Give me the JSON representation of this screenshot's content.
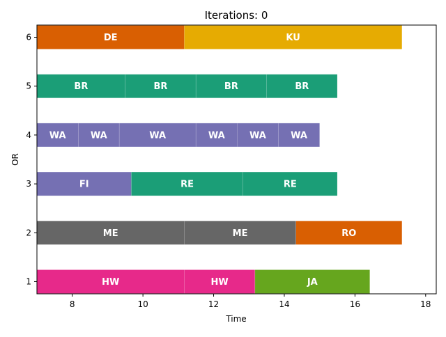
{
  "chart_data": {
    "type": "bar",
    "orientation": "horizontal-gantt",
    "title": "Iterations: 0",
    "xlabel": "Time",
    "ylabel": "OR",
    "xlim": [
      7.0,
      18.3
    ],
    "ylim": [
      0.75,
      6.25
    ],
    "x_ticks": [
      8,
      10,
      12,
      14,
      16,
      18
    ],
    "y_ticks": [
      1,
      2,
      3,
      4,
      5,
      6
    ],
    "grid": false,
    "legend": "none",
    "colors": {
      "HW": "#e7298a",
      "JA": "#66a61e",
      "ME": "#666666",
      "RO": "#d95f02",
      "FI": "#7570b3",
      "RE": "#1b9e77",
      "WA": "#7570b3",
      "BR": "#1b9e77",
      "DE": "#d95f02",
      "KU": "#e6ab02"
    },
    "tasks": [
      {
        "or": 1,
        "label": "HW",
        "start": 7.0,
        "end": 11.17
      },
      {
        "or": 1,
        "label": "HW",
        "start": 11.17,
        "end": 13.17
      },
      {
        "or": 1,
        "label": "JA",
        "start": 13.17,
        "end": 16.42
      },
      {
        "or": 2,
        "label": "ME",
        "start": 7.0,
        "end": 11.17
      },
      {
        "or": 2,
        "label": "ME",
        "start": 11.17,
        "end": 14.33
      },
      {
        "or": 2,
        "label": "RO",
        "start": 14.33,
        "end": 17.33
      },
      {
        "or": 3,
        "label": "FI",
        "start": 7.0,
        "end": 9.67
      },
      {
        "or": 3,
        "label": "RE",
        "start": 9.67,
        "end": 12.83
      },
      {
        "or": 3,
        "label": "RE",
        "start": 12.83,
        "end": 15.5
      },
      {
        "or": 4,
        "label": "WA",
        "start": 7.0,
        "end": 8.17
      },
      {
        "or": 4,
        "label": "WA",
        "start": 8.17,
        "end": 9.33
      },
      {
        "or": 4,
        "label": "WA",
        "start": 9.33,
        "end": 11.5
      },
      {
        "or": 4,
        "label": "WA",
        "start": 11.5,
        "end": 12.67
      },
      {
        "or": 4,
        "label": "WA",
        "start": 12.67,
        "end": 13.83
      },
      {
        "or": 4,
        "label": "WA",
        "start": 13.83,
        "end": 15.0
      },
      {
        "or": 5,
        "label": "BR",
        "start": 7.0,
        "end": 9.5
      },
      {
        "or": 5,
        "label": "BR",
        "start": 9.5,
        "end": 11.5
      },
      {
        "or": 5,
        "label": "BR",
        "start": 11.5,
        "end": 13.5
      },
      {
        "or": 5,
        "label": "BR",
        "start": 13.5,
        "end": 15.5
      },
      {
        "or": 6,
        "label": "DE",
        "start": 7.0,
        "end": 11.17
      },
      {
        "or": 6,
        "label": "KU",
        "start": 11.17,
        "end": 17.33
      }
    ]
  }
}
